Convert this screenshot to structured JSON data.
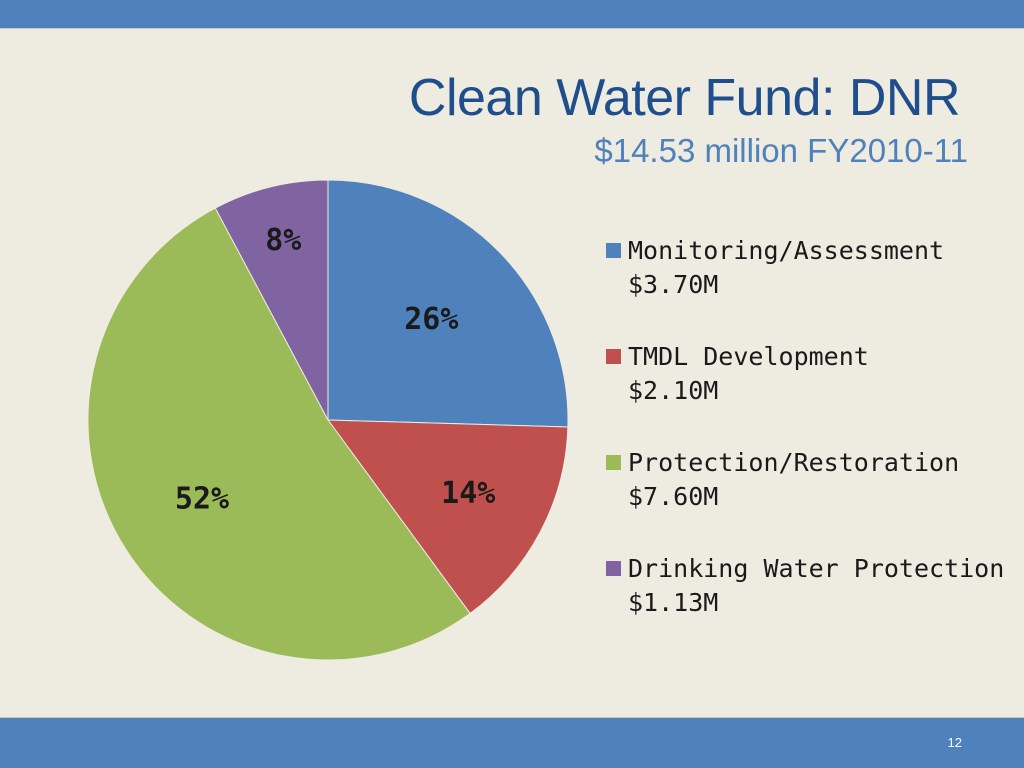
{
  "slide": {
    "title": "Clean Water Fund: DNR",
    "subtitle": "$14.53 million FY2010-11",
    "page_number": "12"
  },
  "chart_data": {
    "type": "pie",
    "categories": [
      "Monitoring/Assessment",
      "TMDL Development",
      "Protection/Restoration",
      "Drinking Water Protection"
    ],
    "amount_labels": [
      "$3.70M",
      "$2.10M",
      "$7.60M",
      "$1.13M"
    ],
    "values": [
      3.7,
      2.1,
      7.6,
      1.13
    ],
    "percent_labels": [
      "26%",
      "14%",
      "52%",
      "8%"
    ],
    "colors": [
      "#4f81bd",
      "#c0504d",
      "#9bbb59",
      "#8064a2"
    ],
    "legend_position": "right"
  }
}
